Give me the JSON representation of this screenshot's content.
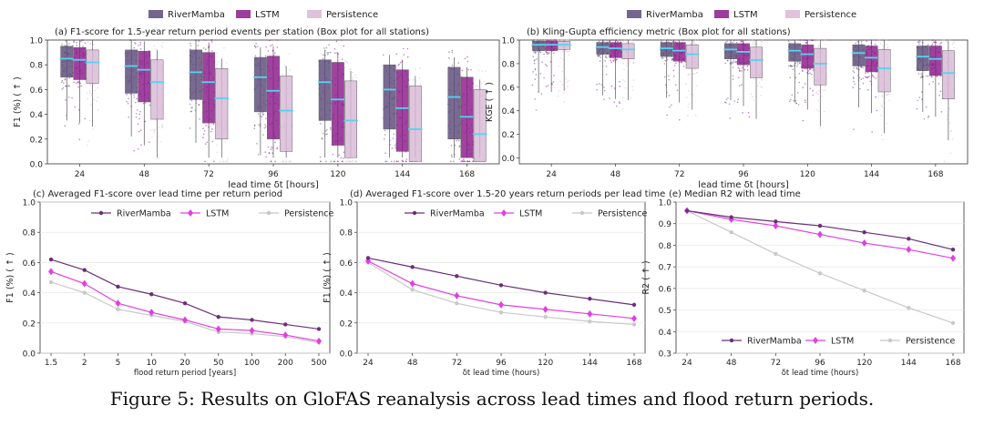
{
  "caption": "Figure 5: Results on GloFAS reanalysis across lead times and flood return periods.",
  "colors": {
    "rivermamba": "#5c4a7a",
    "lstm": "#8b1a8b",
    "persistence": "#d9b9d6",
    "median": "#52d4f0",
    "line_rivermamba": "#6b2f7a",
    "line_lstm": "#e040e0",
    "line_persistence": "#c8c8c8"
  },
  "chart_data": [
    {
      "id": "a",
      "type": "box",
      "title": "(a) F1-score for 1.5-year return period events per station (Box plot for all stations)",
      "xlabel": "lead time δt [hours]",
      "ylabel": "F1 (%) ( ↑ )",
      "categories": [
        "24",
        "48",
        "72",
        "96",
        "120",
        "144",
        "168"
      ],
      "yticks": [
        "0.0",
        "0.2",
        "0.4",
        "0.6",
        "0.8",
        "1.0"
      ],
      "ylim": [
        0,
        1
      ],
      "legend": "top-center",
      "series": [
        {
          "name": "RiverMamba",
          "medians": [
            0.85,
            0.79,
            0.74,
            0.7,
            0.66,
            0.6,
            0.54
          ],
          "q1": [
            0.7,
            0.57,
            0.52,
            0.42,
            0.35,
            0.28,
            0.2
          ],
          "q3": [
            0.95,
            0.92,
            0.92,
            0.86,
            0.84,
            0.8,
            0.78
          ]
        },
        {
          "name": "LSTM",
          "medians": [
            0.84,
            0.76,
            0.66,
            0.59,
            0.52,
            0.45,
            0.38
          ],
          "q1": [
            0.68,
            0.5,
            0.33,
            0.2,
            0.15,
            0.1,
            0.05
          ],
          "q3": [
            0.94,
            0.91,
            0.9,
            0.87,
            0.82,
            0.76,
            0.7
          ]
        },
        {
          "name": "Persistence",
          "medians": [
            0.82,
            0.66,
            0.53,
            0.43,
            0.35,
            0.28,
            0.24
          ],
          "q1": [
            0.65,
            0.36,
            0.2,
            0.1,
            0.05,
            0.02,
            0.02
          ],
          "q3": [
            0.92,
            0.84,
            0.77,
            0.71,
            0.67,
            0.63,
            0.6
          ]
        }
      ]
    },
    {
      "id": "b",
      "type": "box",
      "title": "(b) Kling-Gupta efficiency metric (Box plot for all stations)",
      "xlabel": "lead time δt [hours]",
      "ylabel": "KGE ( ↑ )",
      "categories": [
        "24",
        "48",
        "72",
        "96",
        "120",
        "144",
        "168"
      ],
      "yticks": [
        "0.0",
        "0.2",
        "0.4",
        "0.6",
        "0.8",
        "1.0"
      ],
      "ylim": [
        -0.05,
        1
      ],
      "legend": "top-center",
      "series": [
        {
          "name": "RiverMamba",
          "medians": [
            0.96,
            0.94,
            0.93,
            0.92,
            0.91,
            0.89,
            0.86
          ],
          "q1": [
            0.91,
            0.88,
            0.86,
            0.84,
            0.82,
            0.78,
            0.74
          ],
          "q3": [
            0.99,
            0.98,
            0.98,
            0.97,
            0.97,
            0.96,
            0.95
          ]
        },
        {
          "name": "LSTM",
          "medians": [
            0.96,
            0.93,
            0.91,
            0.9,
            0.88,
            0.85,
            0.84
          ],
          "q1": [
            0.91,
            0.85,
            0.82,
            0.79,
            0.76,
            0.73,
            0.7
          ],
          "q3": [
            0.99,
            0.98,
            0.98,
            0.97,
            0.96,
            0.95,
            0.95
          ]
        },
        {
          "name": "Persistence",
          "medians": [
            0.96,
            0.92,
            0.88,
            0.83,
            0.8,
            0.76,
            0.72
          ],
          "q1": [
            0.92,
            0.84,
            0.76,
            0.68,
            0.62,
            0.56,
            0.5
          ],
          "q3": [
            0.99,
            0.97,
            0.96,
            0.94,
            0.93,
            0.92,
            0.91
          ]
        }
      ]
    },
    {
      "id": "c",
      "type": "line",
      "title": "(c) Averaged F1-score over lead time per return period",
      "xlabel": "flood return period [years]",
      "ylabel": "F1 (%) ( ↑ )",
      "categories": [
        "1.5",
        "2",
        "5",
        "10",
        "20",
        "50",
        "100",
        "200",
        "500"
      ],
      "yticks": [
        "0.0",
        "0.2",
        "0.4",
        "0.6",
        "0.8",
        "1.0"
      ],
      "ylim": [
        0,
        1
      ],
      "legend": "top-right",
      "series": [
        {
          "name": "RiverMamba",
          "values": [
            0.62,
            0.55,
            0.44,
            0.39,
            0.33,
            0.24,
            0.22,
            0.19,
            0.16
          ]
        },
        {
          "name": "LSTM",
          "values": [
            0.54,
            0.46,
            0.33,
            0.27,
            0.22,
            0.16,
            0.15,
            0.12,
            0.08
          ]
        },
        {
          "name": "Persistence",
          "values": [
            0.47,
            0.4,
            0.29,
            0.25,
            0.21,
            0.14,
            0.13,
            0.11,
            0.07
          ]
        }
      ]
    },
    {
      "id": "d",
      "type": "line",
      "title": "(d) Averaged F1-score over 1.5-20 years return periods per lead time",
      "xlabel": "δt lead time (hours)",
      "ylabel": "F1 (%) ( ↑ )",
      "categories": [
        "24",
        "48",
        "72",
        "96",
        "120",
        "144",
        "168"
      ],
      "yticks": [
        "0.0",
        "0.2",
        "0.4",
        "0.6",
        "0.8",
        "1.0"
      ],
      "ylim": [
        0,
        1
      ],
      "legend": "top-right",
      "series": [
        {
          "name": "RiverMamba",
          "values": [
            0.63,
            0.57,
            0.51,
            0.45,
            0.4,
            0.36,
            0.32
          ]
        },
        {
          "name": "LSTM",
          "values": [
            0.61,
            0.46,
            0.38,
            0.32,
            0.29,
            0.26,
            0.23
          ]
        },
        {
          "name": "Persistence",
          "values": [
            0.6,
            0.42,
            0.33,
            0.27,
            0.24,
            0.21,
            0.19
          ]
        }
      ]
    },
    {
      "id": "e",
      "type": "line",
      "title": "(e) Median R2 with lead time",
      "xlabel": "δt lead time (hours)",
      "ylabel": "R2 ( ↑ )",
      "categories": [
        "24",
        "48",
        "72",
        "96",
        "120",
        "144",
        "168"
      ],
      "yticks": [
        "0.3",
        "0.4",
        "0.5",
        "0.6",
        "0.7",
        "0.8",
        "0.9",
        "1.0"
      ],
      "ylim": [
        0.3,
        1
      ],
      "legend": "bottom-right",
      "series": [
        {
          "name": "RiverMamba",
          "values": [
            0.96,
            0.93,
            0.91,
            0.89,
            0.86,
            0.83,
            0.78
          ]
        },
        {
          "name": "LSTM",
          "values": [
            0.96,
            0.92,
            0.89,
            0.85,
            0.81,
            0.78,
            0.74
          ]
        },
        {
          "name": "Persistence",
          "values": [
            0.96,
            0.86,
            0.76,
            0.67,
            0.59,
            0.51,
            0.44
          ]
        }
      ]
    }
  ]
}
